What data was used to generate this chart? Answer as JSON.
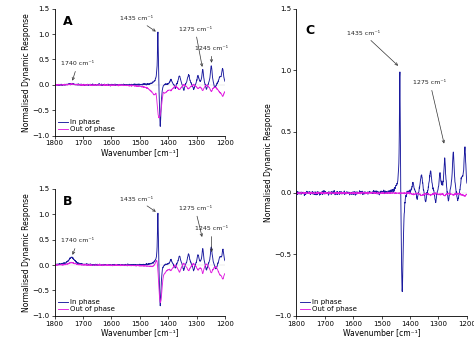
{
  "xlim": [
    1800,
    1200
  ],
  "ylim": [
    -1.0,
    1.5
  ],
  "xticks": [
    1800,
    1700,
    1600,
    1500,
    1400,
    1300,
    1200
  ],
  "yticks": [
    -1.0,
    -0.5,
    0.0,
    0.5,
    1.0,
    1.5
  ],
  "xlabel": "Wavenumber [cm⁻¹]",
  "ylabel": "Normalised Dynamic Response",
  "in_phase_color": "#1a1a9e",
  "out_phase_color": "#e020e0",
  "background": "#ffffff",
  "panel_labels": [
    "A",
    "B",
    "C"
  ],
  "annot_fontsize": 4.5,
  "label_fontsize": 5.5,
  "tick_fontsize": 5.0,
  "legend_fontsize": 5.0,
  "panel_label_fontsize": 9,
  "annotations_A": [
    {
      "label": "1740 cm⁻¹",
      "xp": 1740,
      "yp": 0.03,
      "xt": 1718,
      "yt": 0.42
    },
    {
      "label": "1435 cm⁻¹",
      "xp": 1435,
      "yp": 1.02,
      "xt": 1510,
      "yt": 1.3
    },
    {
      "label": "1275 cm⁻¹",
      "xp": 1278,
      "yp": 0.3,
      "xt": 1305,
      "yt": 1.1
    },
    {
      "label": "1245 cm⁻¹",
      "xp": 1247,
      "yp": 0.38,
      "xt": 1248,
      "yt": 0.72
    }
  ],
  "annotations_B": [
    {
      "label": "1740 cm⁻¹",
      "xp": 1740,
      "yp": 0.15,
      "xt": 1718,
      "yt": 0.48
    },
    {
      "label": "1435 cm⁻¹",
      "xp": 1435,
      "yp": 1.02,
      "xt": 1510,
      "yt": 1.3
    },
    {
      "label": "1275 cm⁻¹",
      "xp": 1278,
      "yp": 0.5,
      "xt": 1305,
      "yt": 1.12
    },
    {
      "label": "1245 cm⁻¹",
      "xp": 1247,
      "yp": 0.2,
      "xt": 1248,
      "yt": 0.72
    }
  ],
  "annotations_C": [
    {
      "label": "1435 cm⁻¹",
      "xp": 1435,
      "yp": 1.02,
      "xt": 1565,
      "yt": 1.3
    },
    {
      "label": "1275 cm⁻¹",
      "xp": 1278,
      "yp": 0.38,
      "xt": 1330,
      "yt": 0.9
    }
  ]
}
